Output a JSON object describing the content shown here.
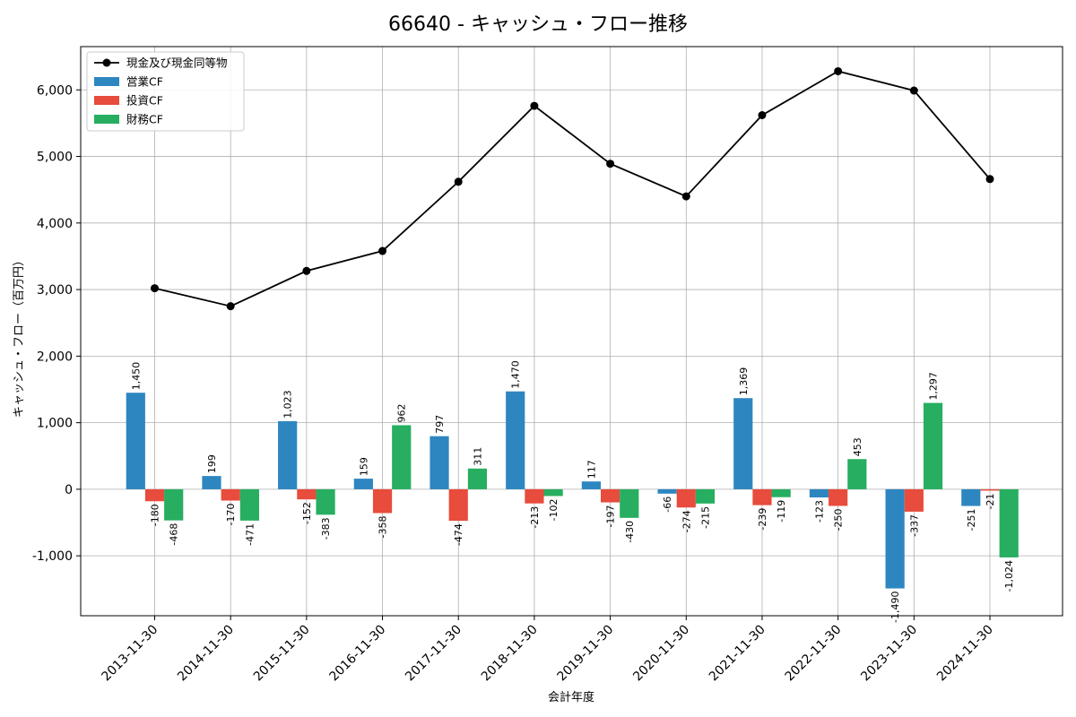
{
  "chart_data": {
    "type": "bar",
    "title": "66640 - キャッシュ・フロー推移",
    "xlabel": "会計年度",
    "ylabel": "キャッシュ・フロー（百万円）",
    "ylim": [
      -1900,
      6650
    ],
    "yticks": [
      -1000,
      0,
      1000,
      2000,
      3000,
      4000,
      5000,
      6000
    ],
    "ytick_labels": [
      "-1,000",
      "0",
      "1,000",
      "2,000",
      "3,000",
      "4,000",
      "5,000",
      "6,000"
    ],
    "categories": [
      "2013-11-30",
      "2014-11-30",
      "2015-11-30",
      "2016-11-30",
      "2017-11-30",
      "2018-11-30",
      "2019-11-30",
      "2020-11-30",
      "2021-11-30",
      "2022-11-30",
      "2023-11-30",
      "2024-11-30"
    ],
    "series": [
      {
        "name": "営業CF",
        "kind": "bar",
        "color": "#2e86c1",
        "values": [
          1450,
          199,
          1023,
          159,
          797,
          1470,
          117,
          -66,
          1369,
          -123,
          -1490,
          -251
        ],
        "labels": [
          "1,450",
          "199",
          "1,023",
          "159",
          "797",
          "1,470",
          "117",
          "-66",
          "1,369",
          "-123",
          "-1,490",
          "-251"
        ]
      },
      {
        "name": "投資CF",
        "kind": "bar",
        "color": "#e74c3c",
        "values": [
          -180,
          -170,
          -152,
          -358,
          -474,
          -213,
          -197,
          -274,
          -239,
          -250,
          -337,
          -21
        ],
        "labels": [
          "-180",
          "-170",
          "-152",
          "-358",
          "-474",
          "-213",
          "-197",
          "-274",
          "-239",
          "-250",
          "-337",
          "-21"
        ]
      },
      {
        "name": "財務CF",
        "kind": "bar",
        "color": "#27ae60",
        "values": [
          -468,
          -471,
          -383,
          962,
          311,
          -102,
          -430,
          -215,
          -119,
          453,
          1297,
          -1024
        ],
        "labels": [
          "-468",
          "-471",
          "-383",
          "962",
          "311",
          "-102",
          "-430",
          "-215",
          "-119",
          "453",
          "1,297",
          "-1,024"
        ]
      },
      {
        "name": "現金及び現金同等物",
        "kind": "line",
        "color": "#000000",
        "values": [
          3020,
          2750,
          3280,
          3580,
          4620,
          5760,
          4890,
          4400,
          5620,
          6280,
          5990,
          4660
        ]
      }
    ],
    "legend_order": [
      "現金及び現金同等物",
      "営業CF",
      "投資CF",
      "財務CF"
    ],
    "legend_position": "top-left",
    "grid": true
  }
}
